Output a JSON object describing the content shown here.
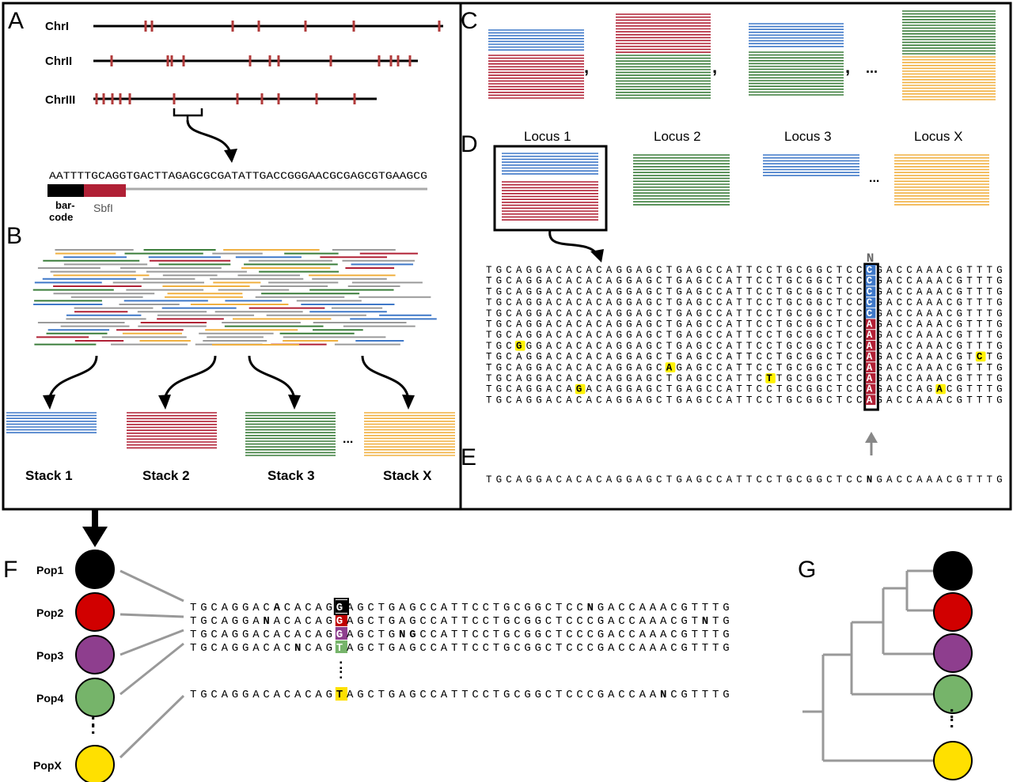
{
  "panel_letters": {
    "a": "A",
    "b": "B",
    "c": "C",
    "d": "D",
    "e": "E",
    "f": "F",
    "g": "G"
  },
  "colors": {
    "blue": "#3f78c8",
    "red": "#b02035",
    "green": "#3a7d3a",
    "orange": "#f0b040",
    "gray": "#9a9a9a",
    "purple": "#8e3e8e",
    "lightgreen": "#76b46a",
    "yellow": "#ffe000",
    "highlight": "#fff200",
    "black": "#000000"
  },
  "panel_a": {
    "chromosomes": [
      "ChrI",
      "ChrII",
      "ChrIII"
    ],
    "sequence": "AATTTTGCAGGTGACTTAGAGCGCGATATTGACCGGGAACGCGAGCGTGAAGCG",
    "barcode_label_1": "bar-",
    "barcode_label_2": "code",
    "enzyme_label": "SbfI"
  },
  "panel_b": {
    "stacks": [
      "Stack 1",
      "Stack 2",
      "Stack 3",
      "Stack X"
    ],
    "ellipsis": "..."
  },
  "panel_c": {
    "comma": ",",
    "ellipsis": "..."
  },
  "panel_d": {
    "loci": [
      "Locus 1",
      "Locus 2",
      "Locus 3",
      "Locus X"
    ],
    "ellipsis": "...",
    "snp_header": "N",
    "alignment_rows": [
      "TGCAGGACACACAGGAGCTGAGCCATTCCTGCGGCTCCCGACCAAACGTTTG",
      "TGCAGGACACACAGGAGCTGAGCCATTCCTGCGGCTCCCGACCAAACGTTTG",
      "TGCAGGACACACAGGAGCTGAGCCATTCCTGCGGCTCCCGACCAAACGTTTG",
      "TGCAGGACACACAGGAGCTGAGCCATTCCTGCGGCTCCCGACCAAACGTTTG",
      "TGCAGGACACACAGGAGCTGAGCCATTCCTGCGGCTCCCGACCAAACGTTTG",
      "TGCAGGACACACAGGAGCTGAGCCATTCCTGCGGCTCCAGACCAAACGTTTG",
      "TGCAGGACACACAGGAGCTGAGCCATTCCTGCGGCTCCAGACCAAACGTTTG",
      "TGCGGGACACACAGGAGCTGAGCCATTCCTGCGGCTCCAGACCAAACGTTTG",
      "TGCAGGACACACAGGAGCTGAGCCATTCCTGCGGCTCCAGACCAAACGTCTG",
      "TGCAGGACACACAGGAGCAGAGCCATTCCTGCGGCTCCAGACCAAACGTTTG",
      "TGCAGGACACACAGGAGCTGAGCCATTCTTGCGGCTCCAGACCAAACGTTTG",
      "TGCAGGACAGACAGGAGCTGAGCCATTCCTGCGGCTCCAGACCAGACGTTTG",
      "TGCAGGACACACAGGAGCTGAGCCATTCCTGCGGCTCCAGACCAAACGTTTG"
    ]
  },
  "panel_e": {
    "consensus": "TGCAGGACACACAGGAGCTGAGCCATTCCTGCGGCTCCNGACCAAACGTTTG"
  },
  "panel_f": {
    "populations": [
      "Pop1",
      "Pop2",
      "Pop3",
      "Pop4",
      "PopX"
    ],
    "sequences": [
      "TGCAGGACACACAGGAGCTGAGCCATTCCTGCGGCTCCNGACCAAACGTTTG",
      "TGCAGGANACACAGGAGCTGAGCCATTCCTGCGGCTCCCGACCAAACGTNTG",
      "TGCAGGACACACAGGAGCTGNGCCATTCCTGCGGCTCCCGACCAAACGTTTG",
      "TGCAGGACACNCAGTAGCTGAGCCATTCCTGCGGCTCCCGACCAAACGTTTG"
    ],
    "last_sequence": "TGCAGGACACACAGTAGCTGAGCCATTCCTGCGGCTCCCGACCAANCGTTTG",
    "vertical_dots": ":"
  }
}
